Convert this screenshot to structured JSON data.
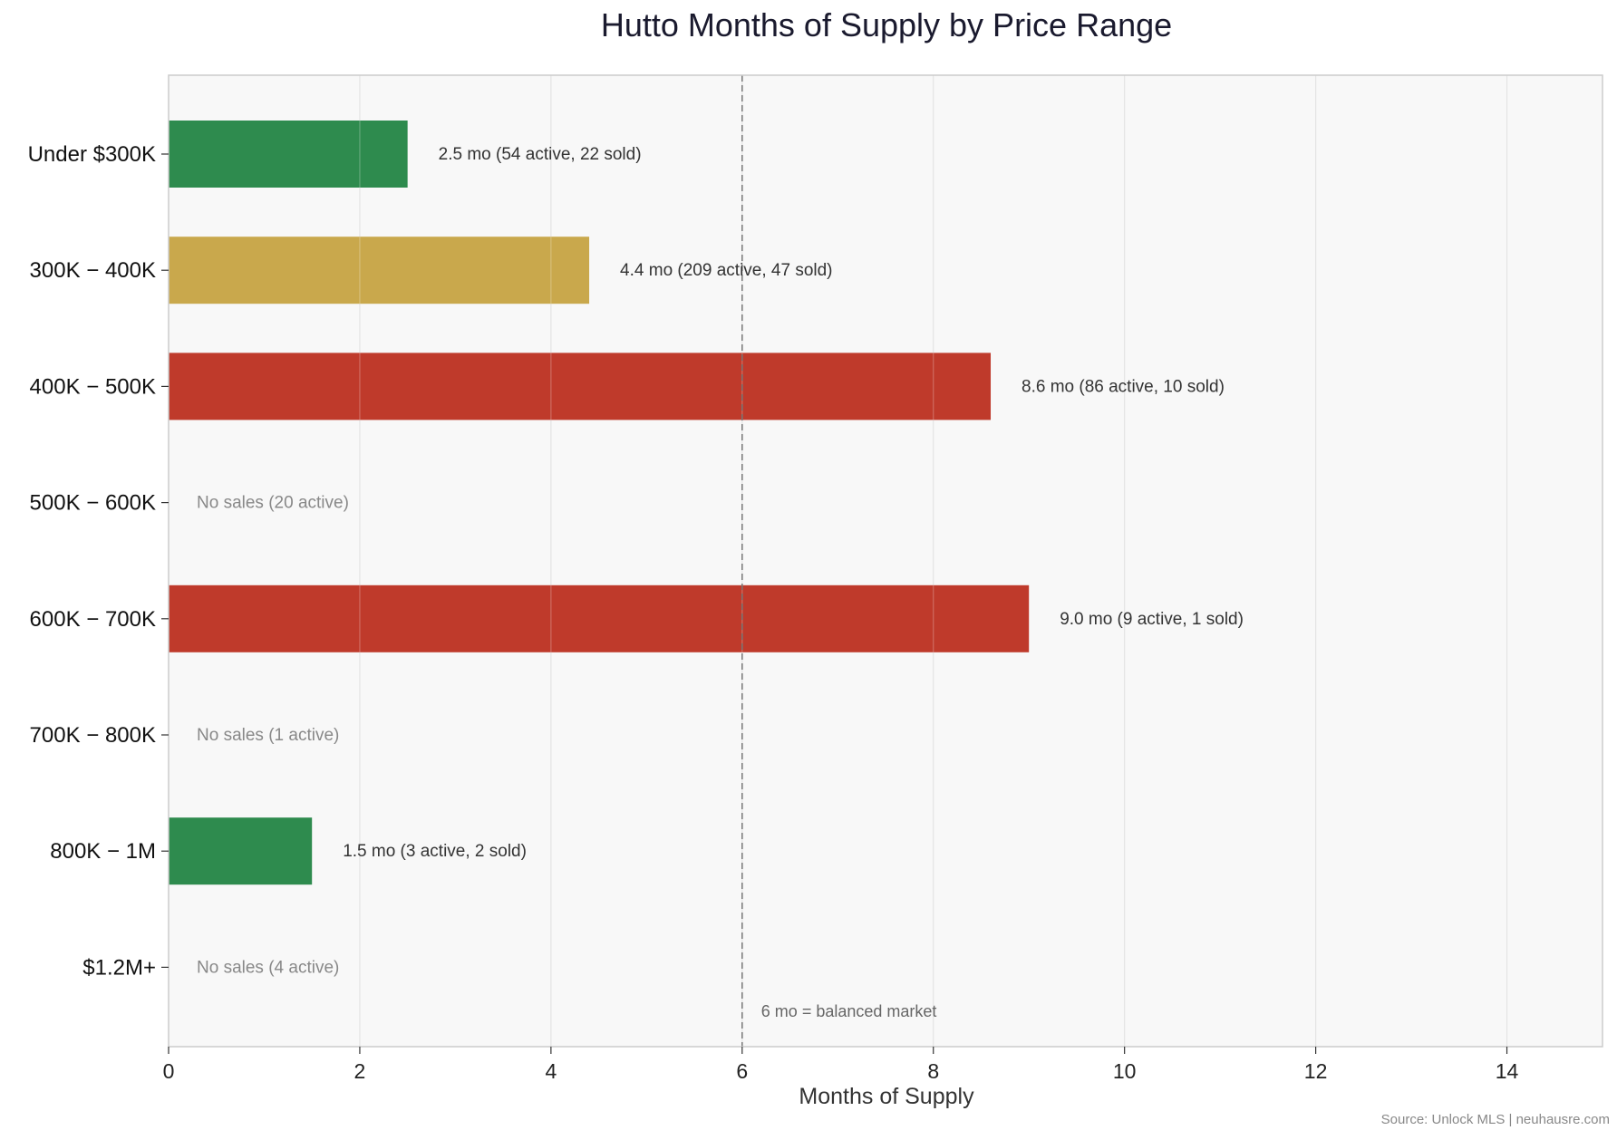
{
  "chart_data": {
    "type": "bar",
    "orientation": "horizontal",
    "title": "Hutto Months of Supply by Price Range",
    "xlabel": "Months of Supply",
    "ylabel": "",
    "xlim": [
      0,
      15
    ],
    "xticks": [
      "0",
      "2",
      "4",
      "6",
      "8",
      "10",
      "12",
      "14"
    ],
    "grid": "vertical",
    "categories": [
      "Under $300K",
      "300K − 400K",
      "400K − 500K",
      "500K − 600K",
      "600K − 700K",
      "700K − 800K",
      "800K − 1M",
      "$1.2M+"
    ],
    "values": [
      2.5,
      4.4,
      8.6,
      null,
      9.0,
      null,
      1.5,
      null
    ],
    "active": [
      54,
      209,
      86,
      20,
      9,
      1,
      3,
      4
    ],
    "sold": [
      22,
      47,
      10,
      0,
      1,
      0,
      2,
      0
    ],
    "bar_colors": [
      "#2e8b4e",
      "#c9a84c",
      "#bf3a2b",
      "",
      "#bf3a2b",
      "",
      "#2e8b4e",
      ""
    ],
    "data_labels": [
      "2.5 mo  (54 active, 22 sold)",
      "4.4 mo  (209 active, 47 sold)",
      "8.6 mo  (86 active, 10 sold)",
      "No sales  (20 active)",
      "9.0 mo  (9 active, 1 sold)",
      "No sales  (1 active)",
      "1.5 mo  (3 active, 2 sold)",
      "No sales  (4 active)"
    ],
    "reference_line": {
      "value": 6,
      "label": "6 mo = balanced market",
      "style": "dashed",
      "color": "#777777"
    },
    "source": "Source: Unlock MLS | neuhausre.com"
  },
  "colors": {
    "plot_background": "#f8f8f8",
    "grid": "#e4e4e4",
    "frame": "#cccccc",
    "title": "#1a1a2e",
    "no_sales_label": "#888888",
    "bar_label": "#333333",
    "source": "#888888"
  }
}
